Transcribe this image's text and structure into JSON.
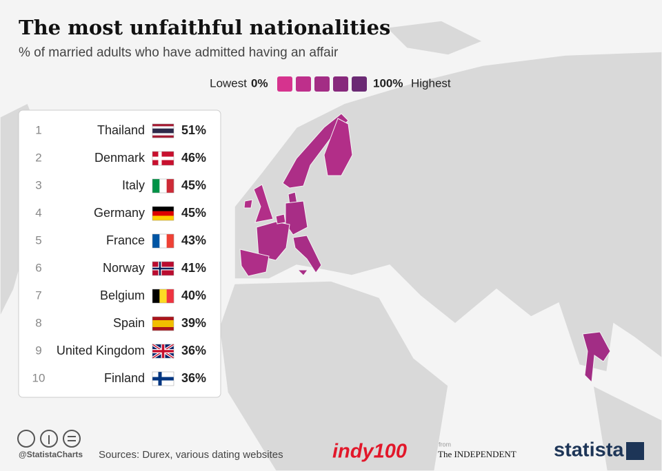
{
  "header": {
    "title": "The most unfaithful nationalities",
    "subtitle": "% of married adults who have admitted having an affair"
  },
  "legend": {
    "low_label": "Lowest",
    "high_label": "Highest",
    "ticks": [
      {
        "value": 0,
        "label": "0%"
      },
      {
        "value": 100,
        "label": "100%"
      }
    ],
    "colors": [
      "#d6338e",
      "#be2f8b",
      "#a32d85",
      "#87297c",
      "#6b2a74"
    ]
  },
  "ranking": {
    "rows": [
      {
        "rank": 1,
        "country": "Thailand",
        "value": 51,
        "value_label": "51%"
      },
      {
        "rank": 2,
        "country": "Denmark",
        "value": 46,
        "value_label": "46%"
      },
      {
        "rank": 3,
        "country": "Italy",
        "value": 45,
        "value_label": "45%"
      },
      {
        "rank": 4,
        "country": "Germany",
        "value": 45,
        "value_label": "45%"
      },
      {
        "rank": 5,
        "country": "France",
        "value": 43,
        "value_label": "43%"
      },
      {
        "rank": 6,
        "country": "Norway",
        "value": 41,
        "value_label": "41%"
      },
      {
        "rank": 7,
        "country": "Belgium",
        "value": 40,
        "value_label": "40%"
      },
      {
        "rank": 8,
        "country": "Spain",
        "value": 39,
        "value_label": "39%"
      },
      {
        "rank": 9,
        "country": "United Kingdom",
        "value": 36,
        "value_label": "36%"
      },
      {
        "rank": 10,
        "country": "Finland",
        "value": 36,
        "value_label": "36%"
      }
    ]
  },
  "footer": {
    "handle": "@StatistaCharts",
    "source": "Sources: Durex, various dating websites",
    "partner": "indy100",
    "from": "from",
    "publisher": "The INDEPENDENT",
    "brand": "statista"
  }
}
